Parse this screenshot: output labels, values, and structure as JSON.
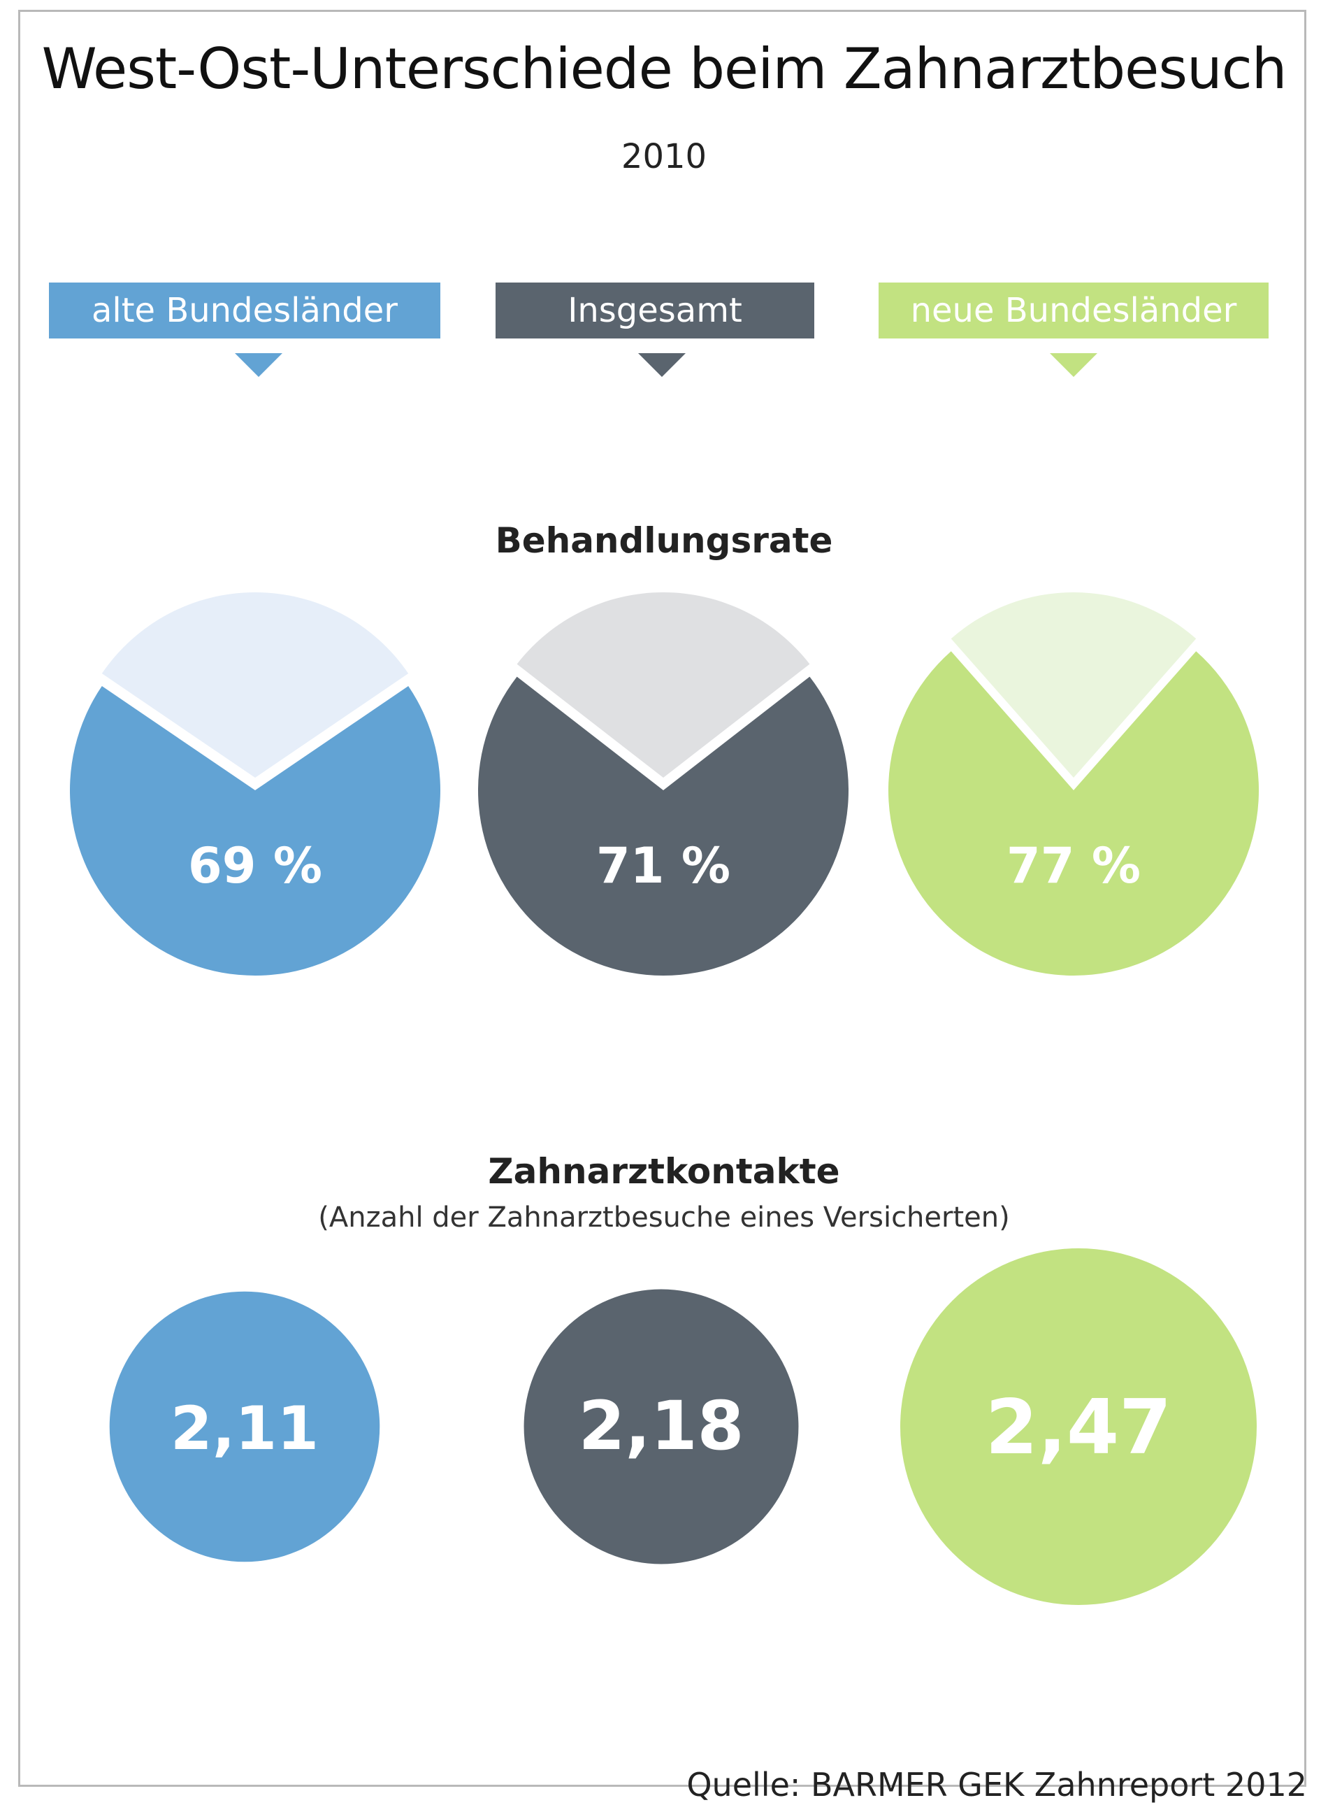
{
  "title": "West-Ost-Unterschiede beim Zahnarztbesuch",
  "subtitle": "2010",
  "source": "Quelle: BARMER GEK Zahnreport 2012",
  "colors": {
    "west": "#62a3d4",
    "west_light": "#e6eef9",
    "total": "#5a646e",
    "total_light": "#dfe0e2",
    "east": "#c2e281",
    "east_light": "#eaf5dd"
  },
  "legend": [
    {
      "label": "alte Bundesländer",
      "color": "#62a3d4"
    },
    {
      "label": "Insgesamt",
      "color": "#5a646e"
    },
    {
      "label": "neue Bundesländer",
      "color": "#c2e281"
    }
  ],
  "chart_data": [
    {
      "type": "pie",
      "title": "Behandlungsrate",
      "categories": [
        "alte Bundesländer",
        "Insgesamt",
        "neue Bundesländer"
      ],
      "values": [
        69,
        71,
        77
      ],
      "labels": [
        "69 %",
        "71 %",
        "77 %"
      ],
      "unit": "%"
    },
    {
      "type": "bubble",
      "title": "Zahnarztkontakte",
      "subtitle": "(Anzahl der Zahnarztbesuche eines Versicherten)",
      "categories": [
        "alte Bundesländer",
        "Insgesamt",
        "neue Bundesländer"
      ],
      "values": [
        2.11,
        2.18,
        2.47
      ],
      "labels": [
        "2,11",
        "2,18",
        "2,47"
      ]
    }
  ]
}
